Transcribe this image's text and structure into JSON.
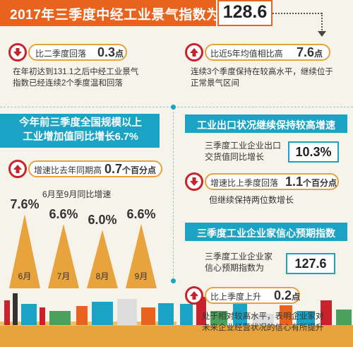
{
  "header": {
    "title": "2017年三季度中经工业景气指数为",
    "value": "128.6"
  },
  "top_left": {
    "pill_label": "比二季度回落",
    "pill_value": "0.3",
    "pill_unit": "点",
    "desc_line1": "在年初达到131.1之后中经工业景气",
    "desc_line2": "指数已经连续2个季度温和回落"
  },
  "top_right": {
    "pill_label": "比近5年均值相比高",
    "pill_value": "7.6",
    "pill_unit": "点",
    "desc_line1": "连续3个季度保持在较高水平，继续位于",
    "desc_line2": "正常景气区间"
  },
  "left_section": {
    "title_line1": "今年前三季度全国规模以上",
    "title_line2": "工业增加值同比增长6.7%",
    "pill_label": "增速比去年同期高",
    "pill_value": "0.7",
    "pill_unit": "个百分点",
    "chart_caption": "6月至9月同比增速"
  },
  "chart_data": {
    "type": "bar",
    "categories": [
      "6月",
      "7月",
      "8月",
      "9月"
    ],
    "values": [
      7.6,
      6.6,
      6.0,
      6.6
    ],
    "labels": [
      "7.6%",
      "6.6%",
      "6.0%",
      "6.6%"
    ],
    "title": "6月至9月同比增速"
  },
  "export_section": {
    "title": "工业出口状况继续保持较高增速",
    "desc_line1": "三季度工业企业出口",
    "desc_line2": "交货值同比增长",
    "value": "10.3%",
    "pill_label": "增速比上季度回落",
    "pill_value": "1.1",
    "pill_unit": "个百分点",
    "note": "但继续保持两位数增长"
  },
  "confidence_section": {
    "title": "三季度工业企业家信心预期指数",
    "desc_line1": "三季度工业企业家",
    "desc_line2": "信心预期指数为",
    "value": "127.6",
    "pill_label": "比上季度上升",
    "pill_value": "0.2",
    "pill_unit": "点",
    "desc2_line1": "处于相对较高水平，表明企业家对",
    "desc2_line2": "未来企业经营状况的信心有所提升"
  },
  "colors": {
    "orange": "#e8641e",
    "teal": "#1aa3c4",
    "red": "#c8232c",
    "triangle": "#e8a33d",
    "gold": "#e6a23c"
  }
}
